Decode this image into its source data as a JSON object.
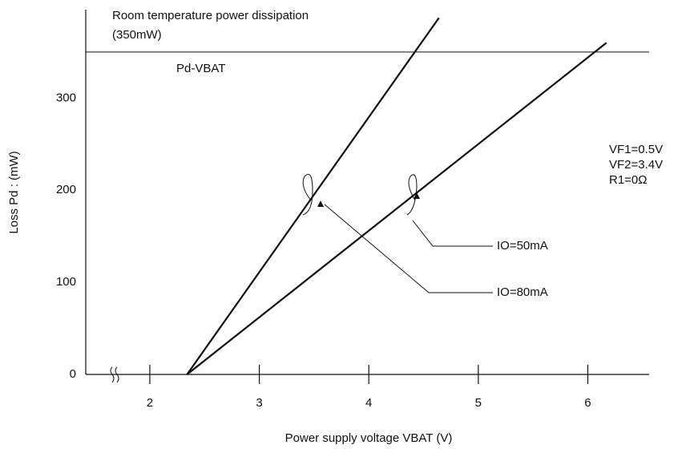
{
  "chart_data": {
    "type": "line",
    "x_label": "Power supply voltage  VBAT (V)",
    "y_label": "Loss  Pd : (mW)",
    "xlim": [
      1.415,
      6.56
    ],
    "ylim": [
      0,
      396
    ],
    "xticks": [
      2,
      3,
      4,
      5,
      6
    ],
    "yticks": [
      0,
      100,
      200,
      300
    ],
    "grid": false,
    "reference_line": {
      "value": 350,
      "label_lines": [
        "Room temperature power dissipation",
        "(350mW)"
      ]
    },
    "curve_label": "Pd-VBAT",
    "annotations": [
      "VF1=0.5V",
      "VF2=3.4V",
      "R1=0Ω"
    ],
    "series": [
      {
        "name": "IO=80mA",
        "color": "#111111",
        "x": [
          2.34,
          4.64
        ],
        "values": [
          0,
          387
        ]
      },
      {
        "name": "IO=50mA",
        "color": "#111111",
        "x": [
          2.34,
          6.17
        ],
        "values": [
          0,
          360
        ]
      }
    ]
  }
}
